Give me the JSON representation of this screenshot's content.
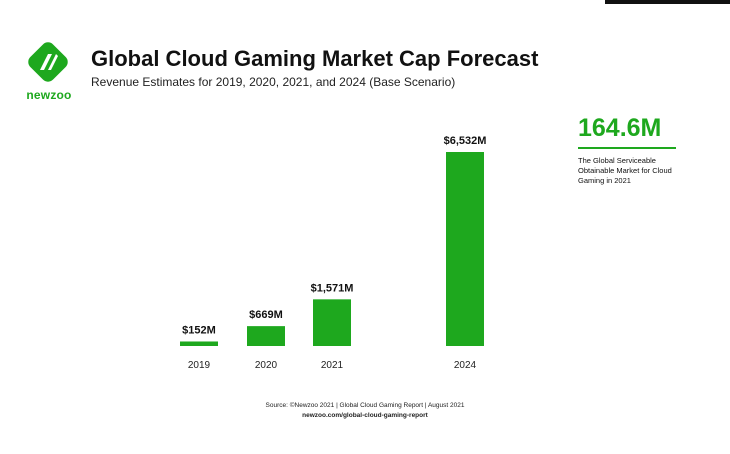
{
  "brand": {
    "name": "newzoo",
    "color": "#1ea81e"
  },
  "header": {
    "title": "Global Cloud Gaming Market Cap Forecast",
    "subtitle": "Revenue Estimates for 2019, 2020, 2021, and 2024 (Base Scenario)"
  },
  "callout": {
    "value": "164.6M",
    "description": "The Global Serviceable Obtainable Market for Cloud Gaming in 2021"
  },
  "source": {
    "line1": "Source: ©Newzoo 2021 | Global Cloud Gaming Report | August 2021",
    "line2": "newzoo.com/global-cloud-gaming-report"
  },
  "chart_data": {
    "type": "bar",
    "categories": [
      "2019",
      "2020",
      "2021",
      "2024"
    ],
    "values": [
      152,
      669,
      1571,
      6532
    ],
    "data_labels": [
      "$152M",
      "$669M",
      "$1,571M",
      "$6,532M"
    ],
    "unit": "$M",
    "bar_color": "#1ea81e",
    "grid": false,
    "axes_visible": false
  }
}
